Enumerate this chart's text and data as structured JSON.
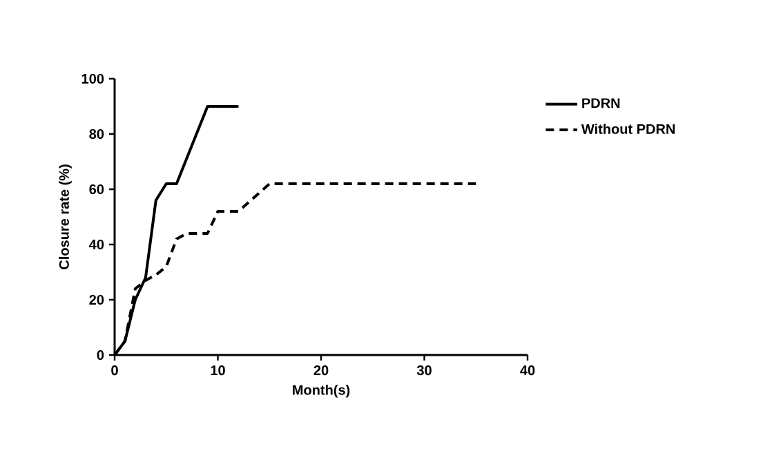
{
  "chart_data": {
    "type": "line",
    "xlabel": "Month(s)",
    "ylabel": "Closure rate (%)",
    "xlim": [
      0,
      40
    ],
    "ylim": [
      0,
      100
    ],
    "xticks": [
      0,
      10,
      20,
      30,
      40
    ],
    "yticks": [
      0,
      20,
      40,
      60,
      80,
      100
    ],
    "legend": "top right",
    "grid": false,
    "marker": "none",
    "series": [
      {
        "name": "PDRN",
        "color": "#000000",
        "line_style": "solid",
        "x": [
          0,
          1,
          2,
          3,
          4,
          5,
          6,
          9,
          12
        ],
        "values": [
          0,
          5,
          20,
          28,
          56,
          62,
          62,
          90,
          90
        ]
      },
      {
        "name": "Without PDRN",
        "color": "#000000",
        "line_style": "dashed",
        "x": [
          0,
          1,
          2,
          3,
          4,
          5,
          6,
          7,
          9,
          10,
          12,
          15,
          35
        ],
        "values": [
          0,
          5,
          24,
          27,
          29,
          32,
          42,
          44,
          44,
          52,
          52,
          62,
          62
        ]
      }
    ]
  }
}
